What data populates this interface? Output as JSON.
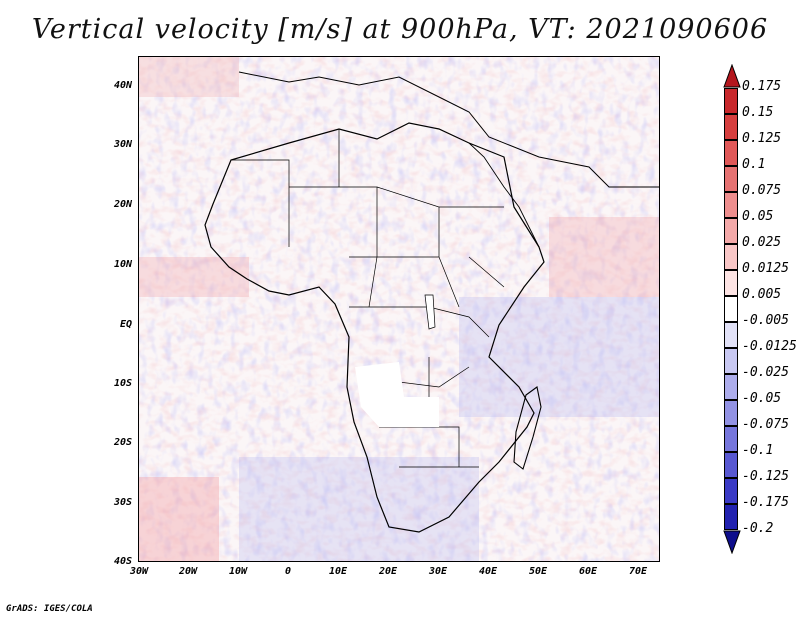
{
  "title": "Vertical velocity [m/s] at 900hPa, VT: 2021090606",
  "credit": "GrADS: IGES/COLA",
  "lat_labels": [
    "40N",
    "30N",
    "20N",
    "10N",
    "EQ",
    "10S",
    "20S",
    "30S",
    "40S"
  ],
  "lon_labels": [
    "30W",
    "20W",
    "10W",
    "0",
    "10E",
    "20E",
    "30E",
    "40E",
    "50E",
    "60E",
    "70E"
  ],
  "colorbar": {
    "labels": [
      "0.175",
      "0.15",
      "0.125",
      "0.1",
      "0.075",
      "0.05",
      "0.025",
      "0.0125",
      "0.005",
      "-0.005",
      "-0.0125",
      "-0.025",
      "-0.05",
      "-0.075",
      "-0.1",
      "-0.125",
      "-0.175",
      "-0.2"
    ],
    "colors": [
      "#b4161d",
      "#c8282c",
      "#d63f3f",
      "#e05858",
      "#e67272",
      "#ee8e8e",
      "#f4a9a9",
      "#f9c7c7",
      "#fde4e4",
      "#ffffff",
      "#e2e2f8",
      "#c8c8f2",
      "#adadec",
      "#9292e4",
      "#7676dc",
      "#5858d2",
      "#3a3ac6",
      "#2222b0",
      "#0e0e8c"
    ]
  }
}
